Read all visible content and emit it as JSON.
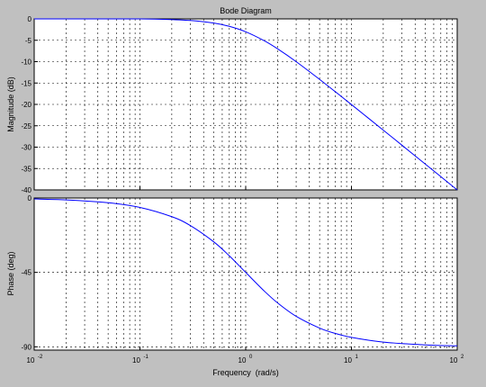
{
  "figure": {
    "title": "Bode Diagram",
    "xlabel": "Frequency  (rad/s)"
  },
  "chart_data": [
    {
      "type": "line",
      "panel": "magnitude",
      "title": "Bode Diagram",
      "xlabel": "",
      "ylabel": "Magnitude (dB)",
      "xscale": "log",
      "xlim": [
        0.01,
        100
      ],
      "ylim": [
        -40,
        0
      ],
      "grid": true,
      "line_color": "#0000ff",
      "x_ticks": [
        "",
        "",
        "",
        "",
        ""
      ],
      "y_ticks": [
        "0",
        "-5",
        "-10",
        "-15",
        "-20",
        "-25",
        "-30",
        "-35",
        "-40"
      ],
      "x": [
        0.01,
        0.05,
        0.1,
        0.2,
        0.3,
        0.5,
        0.7,
        1.0,
        1.5,
        2,
        3,
        5,
        7,
        10,
        20,
        30,
        50,
        70,
        100
      ],
      "series": [
        {
          "values": [
            0.0,
            0.0,
            0.0,
            -0.17,
            -0.37,
            -0.97,
            -1.74,
            -3.01,
            -5.12,
            -6.99,
            -10.0,
            -14.15,
            -16.99,
            -20.04,
            -26.02,
            -29.54,
            -33.98,
            -36.9,
            -40.0
          ]
        }
      ]
    },
    {
      "type": "line",
      "panel": "phase",
      "ylabel": "Phase (deg)",
      "xscale": "log",
      "xlim": [
        0.01,
        100
      ],
      "ylim": [
        -92,
        0
      ],
      "grid": true,
      "line_color": "#0000ff",
      "x_ticks": [
        "10",
        "10",
        "10",
        "10",
        "10"
      ],
      "x_tick_exponents": [
        "-2",
        "-1",
        "0",
        "1",
        "2"
      ],
      "y_ticks": [
        "0",
        "-45",
        "-90"
      ],
      "x": [
        0.01,
        0.02,
        0.05,
        0.1,
        0.2,
        0.3,
        0.5,
        0.7,
        1.0,
        1.5,
        2,
        3,
        5,
        7,
        10,
        20,
        50,
        100
      ],
      "series": [
        {
          "values": [
            -0.57,
            -1.15,
            -2.86,
            -5.71,
            -11.31,
            -16.7,
            -26.57,
            -34.99,
            -45.0,
            -56.31,
            -63.43,
            -71.57,
            -78.69,
            -81.87,
            -84.29,
            -87.14,
            -88.85,
            -89.43
          ]
        }
      ]
    }
  ]
}
